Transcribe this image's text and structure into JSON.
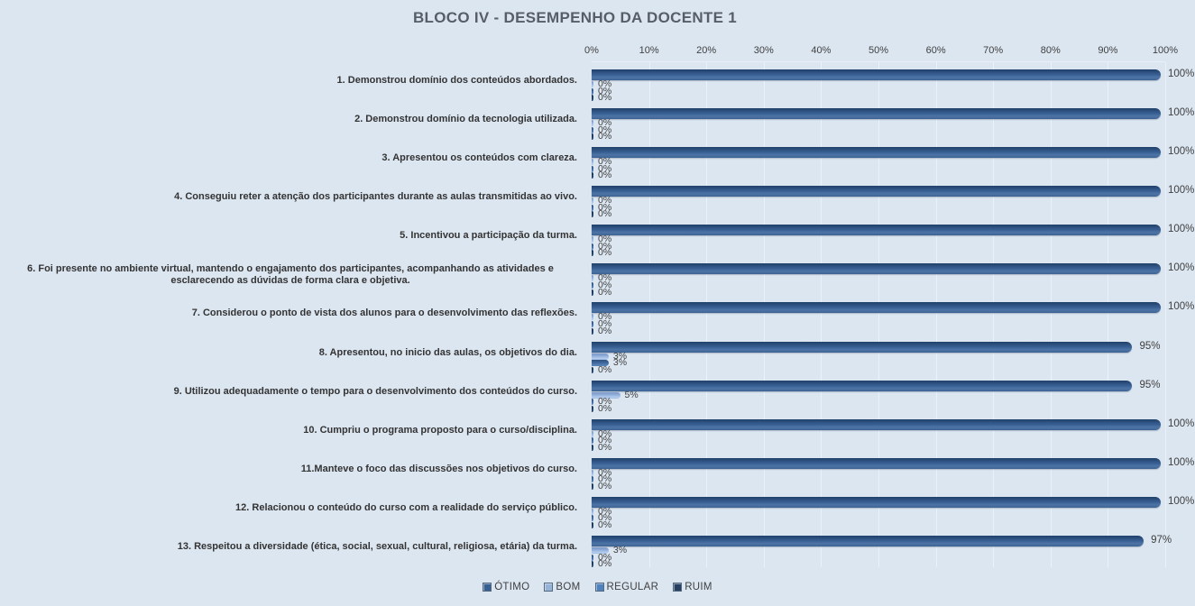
{
  "chart_data": {
    "type": "bar",
    "orientation": "horizontal",
    "title": "BLOCO IV - DESEMPENHO  DA DOCENTE  1",
    "background_color": "#DCE6F1",
    "grid": true,
    "axis": {
      "position": "top",
      "min": 0,
      "max": 100,
      "ticks": [
        "0%",
        "10%",
        "20%",
        "30%",
        "40%",
        "50%",
        "60%",
        "70%",
        "80%",
        "90%",
        "100%"
      ]
    },
    "categories": [
      "1. Demonstrou domínio dos conteúdos abordados.",
      "2. Demonstrou domínio da tecnologia utilizada.",
      "3. Apresentou os conteúdos com clareza.",
      "4. Conseguiu reter a atenção dos participantes durante as aulas transmitidas ao vivo.",
      "5. Incentivou a participação da turma.",
      "6. Foi presente no ambiente virtual, mantendo o engajamento dos participantes, acompanhando as atividades e esclarecendo as dúvidas de forma clara e objetiva.",
      "7. Considerou o ponto de vista dos alunos para o desenvolvimento das reflexões.",
      "8. Apresentou, no inicio das aulas, os objetivos do dia.",
      "9. Utilizou adequadamente o tempo para o desenvolvimento dos conteúdos do curso.",
      "10. Cumpriu o programa proposto para o curso/disciplina.",
      "11.Manteve o foco das discussões nos objetivos do curso.",
      "12. Relacionou o conteúdo do curso com a realidade do serviço público.",
      "13. Respeitou a diversidade (ética, social, sexual, cultural, religiosa, etária) da turma."
    ],
    "series": [
      {
        "name": "ÓTIMO",
        "color": "#376092",
        "values": [
          100,
          100,
          100,
          100,
          100,
          100,
          100,
          95,
          95,
          100,
          100,
          100,
          97
        ],
        "labels": [
          "100%",
          "100%",
          "100%",
          "100%",
          "100%",
          "100%",
          "100%",
          "95%",
          "95%",
          "100%",
          "100%",
          "100%",
          "97%"
        ]
      },
      {
        "name": "BOM",
        "color": "#95B3D7",
        "values": [
          0,
          0,
          0,
          0,
          0,
          0,
          0,
          3,
          5,
          0,
          0,
          0,
          3
        ],
        "labels": [
          "0%",
          "0%",
          "0%",
          "0%",
          "0%",
          "0%",
          "0%",
          "3%",
          "5%",
          "0%",
          "0%",
          "0%",
          "3%"
        ]
      },
      {
        "name": "REGULAR",
        "color": "#4F81BD",
        "values": [
          0,
          0,
          0,
          0,
          0,
          0,
          0,
          3,
          0,
          0,
          0,
          0,
          0
        ],
        "labels": [
          "0%",
          "0%",
          "0%",
          "0%",
          "0%",
          "0%",
          "0%",
          "3%",
          "0%",
          "0%",
          "0%",
          "0%",
          "0%"
        ]
      },
      {
        "name": "RUIM",
        "color": "#254061",
        "values": [
          0,
          0,
          0,
          0,
          0,
          0,
          0,
          0,
          0,
          0,
          0,
          0,
          0
        ],
        "labels": [
          "0%",
          "0%",
          "0%",
          "0%",
          "0%",
          "0%",
          "0%",
          "0%",
          "0%",
          "0%",
          "0%",
          "0%",
          "0%"
        ]
      }
    ],
    "legend": {
      "position": "bottom",
      "entries": [
        "ÓTIMO",
        "BOM",
        "REGULAR",
        "RUIM"
      ]
    },
    "centered_category_indexes": [
      5
    ]
  }
}
